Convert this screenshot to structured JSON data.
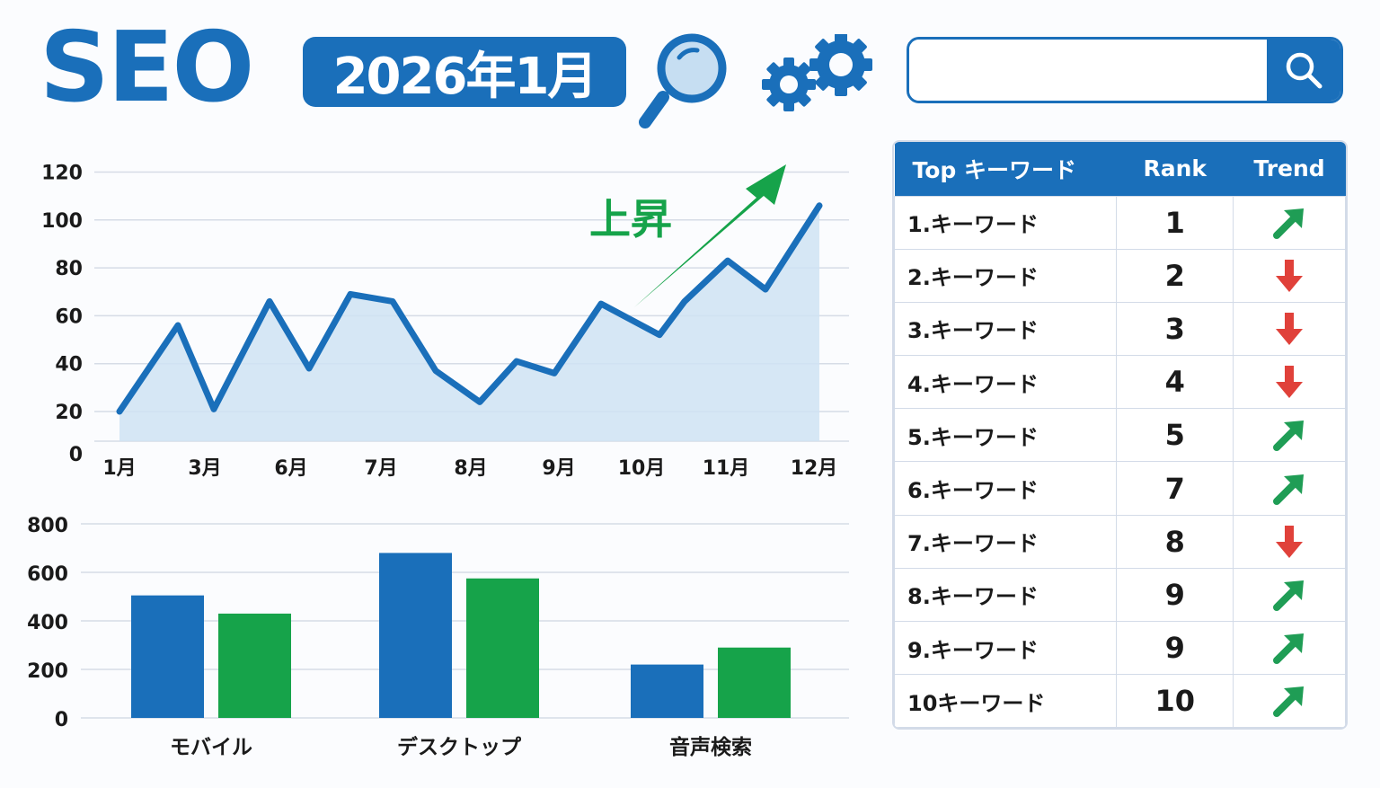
{
  "header": {
    "title": "SEO",
    "date_badge": "2026年1月",
    "search": {
      "placeholder": "",
      "value": ""
    }
  },
  "colors": {
    "primary_blue": "#1a6fba",
    "light_blue_fill": "#cfe3f3",
    "green": "#16a34a",
    "arrow_green": "#1f9d55",
    "red": "#e0413a",
    "grid": "#d6dce6"
  },
  "annotation": {
    "label": "上昇"
  },
  "table": {
    "headers": {
      "keyword": "Top キーワード",
      "rank": "Rank",
      "trend": "Trend"
    },
    "rows": [
      {
        "keyword": "1.キーワード",
        "rank": "1",
        "trend": "up"
      },
      {
        "keyword": "2.キーワード",
        "rank": "2",
        "trend": "down"
      },
      {
        "keyword": "3.キーワード",
        "rank": "3",
        "trend": "down"
      },
      {
        "keyword": "4.キーワード",
        "rank": "4",
        "trend": "down"
      },
      {
        "keyword": "5.キーワード",
        "rank": "5",
        "trend": "up"
      },
      {
        "keyword": "6.キーワード",
        "rank": "7",
        "trend": "up"
      },
      {
        "keyword": "7.キーワード",
        "rank": "8",
        "trend": "down"
      },
      {
        "keyword": "8.キーワード",
        "rank": "9",
        "trend": "up"
      },
      {
        "keyword": "9.キーワード",
        "rank": "9",
        "trend": "up"
      },
      {
        "keyword": "10キーワード",
        "rank": "10",
        "trend": "up"
      }
    ]
  },
  "chart_data": [
    {
      "type": "area",
      "title": "",
      "xlabel": "",
      "ylabel": "",
      "ylim": [
        0,
        120
      ],
      "yticks": [
        0,
        20,
        40,
        60,
        80,
        100,
        120
      ],
      "xtick_labels": [
        "1月",
        "3月",
        "6月",
        "7月",
        "8月",
        "9月",
        "10月",
        "11月",
        "12月"
      ],
      "grid": true,
      "annotation": "上昇",
      "series": [
        {
          "name": "ranking-trend",
          "points_index": [
            0,
            1,
            2,
            3,
            4,
            5,
            6,
            7,
            8,
            9,
            10,
            11,
            12,
            13,
            14,
            15,
            16
          ],
          "values": [
            20,
            56,
            21,
            66,
            38,
            69,
            66,
            37,
            24,
            41,
            36,
            65,
            52,
            66,
            83,
            71,
            106
          ]
        }
      ]
    },
    {
      "type": "bar",
      "title": "",
      "xlabel": "",
      "ylabel": "",
      "ylim": [
        0,
        800
      ],
      "yticks": [
        0,
        200,
        400,
        600,
        800
      ],
      "categories": [
        "モバイル",
        "デスクトップ",
        "音声検索"
      ],
      "grid": true,
      "series": [
        {
          "name": "series-blue",
          "color": "#1a6fba",
          "values": [
            505,
            680,
            220
          ]
        },
        {
          "name": "series-green",
          "color": "#16a34a",
          "values": [
            430,
            575,
            290
          ]
        }
      ]
    }
  ]
}
